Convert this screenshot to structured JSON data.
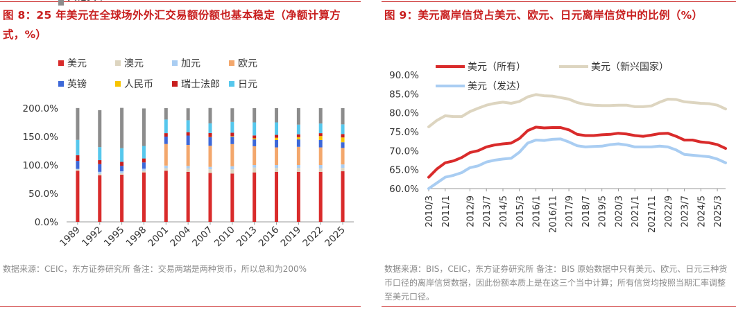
{
  "left": {
    "title": "图 8：25 年美元在全球场外外汇交易额份额也基本稳定（净额计算方式，%）",
    "note": "数据来源：CEIC，东方证券研究所 备注：交易两端是两种货币，所以总和为200%",
    "colors": {
      "美元": "#d92b2b",
      "澳元": "#ddd5c0",
      "加元": "#a9cdf2",
      "欧元": "#f3a76c",
      "英镑": "#3d68d8",
      "人民币": "#f7c400",
      "瑞士法郎": "#c81e1e",
      "日元": "#56c7ec",
      "其他货币": "#8c8c8c"
    }
  },
  "right": {
    "title": "图 9：美元离岸信贷占美元、欧元、日元离岸信贷中的比例（%）",
    "note": "数据来源：BIS，CEIC，东方证券研究所 备注：BIS 原始数据中只有美元、欧元、日元三种货币口径的离岸信贷数据，因此份额本质上是在这三个当中计算；所有信贷均按照当期汇率调整至美元口径。",
    "colors": {
      "美元（所有）": "#d92b2b",
      "美元（新兴国家）": "#ddd5c0",
      "美元（发达）": "#a9cdf2"
    }
  },
  "chart_data": [
    {
      "type": "bar",
      "stacked": true,
      "title": "图 8：25 年美元在全球场外外汇交易额份额也基本稳定（净额计算方式，%）",
      "categories": [
        "1989",
        "1992",
        "1995",
        "1998",
        "2001",
        "2004",
        "2007",
        "2010",
        "2013",
        "2016",
        "2019",
        "2022",
        "2025"
      ],
      "yticks": [
        "0.0%",
        "50.0%",
        "100.0%",
        "150.0%",
        "200.0%"
      ],
      "ylim": [
        0,
        200
      ],
      "legend": "top",
      "series": [
        {
          "name": "美元",
          "values": [
            90,
            82,
            83,
            87,
            90,
            88,
            86,
            85,
            87,
            88,
            88,
            88,
            89
          ]
        },
        {
          "name": "澳元",
          "values": [
            2,
            2.5,
            2.5,
            3,
            4.5,
            6,
            6.5,
            7.5,
            8.5,
            7,
            7,
            6,
            6
          ]
        },
        {
          "name": "加元",
          "values": [
            1.2,
            3.5,
            3.5,
            3.5,
            4.5,
            4.3,
            4.3,
            5.3,
            4.5,
            5,
            5,
            6,
            6
          ]
        },
        {
          "name": "欧元",
          "values": [
            0,
            0,
            0,
            0,
            38,
            37,
            37,
            39,
            33,
            31,
            32,
            31,
            29
          ]
        },
        {
          "name": "英镑",
          "values": [
            14,
            13.5,
            9.5,
            11,
            13,
            16.5,
            15,
            13,
            12,
            13,
            13,
            13,
            10
          ]
        },
        {
          "name": "人民币",
          "values": [
            0,
            0,
            0,
            0,
            0,
            0,
            0.5,
            1,
            2,
            4,
            4,
            7,
            8.5
          ]
        },
        {
          "name": "瑞士法郎",
          "values": [
            10,
            7,
            7,
            7,
            6,
            6,
            7,
            6,
            5,
            5,
            5,
            5,
            6
          ]
        },
        {
          "name": "日元",
          "values": [
            27,
            23,
            24,
            22,
            24,
            21,
            17,
            19,
            23,
            22,
            17,
            17,
            17
          ]
        },
        {
          "name": "其他货币",
          "values": [
            56,
            65,
            71,
            66,
            20,
            21,
            27,
            24,
            25,
            25,
            29,
            27,
            28.5
          ]
        }
      ]
    },
    {
      "type": "line",
      "title": "图 9：美元离岸信贷占美元、欧元、日元离岸信贷中的比例（%）",
      "x": [
        "2010/3",
        "2010/9",
        "2011/1",
        "2011/7",
        "2012/1",
        "2012/9",
        "2013/1",
        "2013/7",
        "2014/1",
        "2014/5",
        "2014/11",
        "2015/3",
        "2015/9",
        "2016/1",
        "2016/7",
        "2016/11",
        "2017/3",
        "2017/9",
        "2018/1",
        "2018/7",
        "2019/1",
        "2019/5",
        "2019/11",
        "2020/3",
        "2020/9",
        "2021/1",
        "2021/7",
        "2021/11",
        "2022/5",
        "2022/9",
        "2023/1",
        "2023/7",
        "2024/1",
        "2024/5",
        "2024/11",
        "2025/3",
        "2025/9"
      ],
      "xticks": [
        "2010/3",
        "2011/1",
        "2011/11",
        "2012/9",
        "2013/7",
        "2014/5",
        "2015/3",
        "2016/1",
        "2016/11",
        "2017/9",
        "2018/7",
        "2019/5",
        "2020/3",
        "2021/1",
        "2021/11",
        "2022/9",
        "2023/7",
        "2024/5",
        "2025/3"
      ],
      "yticks": [
        "60.0%",
        "65.0%",
        "70.0%",
        "75.0%",
        "80.0%",
        "85.0%",
        "90.0%"
      ],
      "ylim": [
        60,
        90
      ],
      "legend": "top",
      "series": [
        {
          "name": "美元（所有）",
          "values": [
            63.0,
            65.2,
            66.8,
            67.3,
            68.2,
            69.5,
            70.0,
            71.0,
            71.5,
            71.8,
            72.0,
            73.2,
            75.3,
            76.2,
            76.0,
            76.1,
            76.1,
            75.5,
            74.3,
            74.0,
            74.0,
            74.2,
            74.3,
            74.6,
            74.4,
            74.0,
            73.8,
            74.1,
            74.5,
            74.6,
            73.8,
            72.8,
            72.8,
            72.3,
            72.1,
            71.6,
            70.6
          ]
        },
        {
          "name": "美元（新兴国家）",
          "values": [
            76.3,
            78.0,
            79.2,
            79.0,
            79.0,
            80.3,
            81.2,
            82.0,
            82.5,
            82.8,
            82.5,
            83.0,
            84.2,
            84.8,
            84.5,
            84.4,
            84.0,
            83.6,
            82.7,
            82.2,
            82.0,
            81.9,
            81.9,
            82.0,
            82.0,
            81.6,
            81.6,
            81.8,
            82.8,
            83.6,
            83.5,
            82.9,
            82.7,
            82.5,
            82.4,
            82.0,
            81.0
          ]
        },
        {
          "name": "美元（发达）",
          "values": [
            60.0,
            61.5,
            63.0,
            63.5,
            64.2,
            65.5,
            66.0,
            67.0,
            67.5,
            67.8,
            68.0,
            69.6,
            72.0,
            72.8,
            72.7,
            73.0,
            73.1,
            72.3,
            71.3,
            71.0,
            71.1,
            71.2,
            71.6,
            71.8,
            71.5,
            71.0,
            71.0,
            71.0,
            71.2,
            71.0,
            70.2,
            69.0,
            68.8,
            68.6,
            68.4,
            67.8,
            66.8
          ]
        }
      ]
    }
  ]
}
